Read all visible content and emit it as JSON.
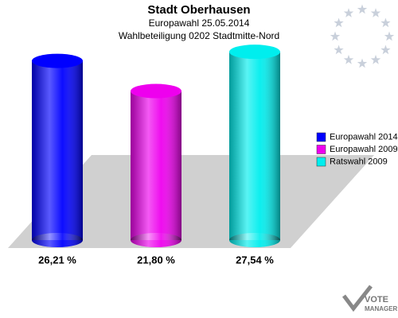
{
  "chart_data": {
    "type": "cylinder-bar",
    "title": "Stadt Oberhausen",
    "subtitle": [
      "Europawahl 25.05.2014",
      "Wahlbeteiligung 0202 Stadtmitte-Nord"
    ],
    "series": [
      {
        "name": "Europawahl 2014",
        "color": "#0000ff",
        "values": [
          26.21
        ],
        "value_labels": [
          "26,21 %"
        ]
      },
      {
        "name": "Europawahl 2009",
        "color": "#ee00ee",
        "values": [
          21.8
        ],
        "value_labels": [
          "21,80 %"
        ]
      },
      {
        "name": "Ratswahl 2009",
        "color": "#00eeee",
        "values": [
          27.54
        ],
        "value_labels": [
          "27,54 %"
        ]
      }
    ]
  },
  "branding": [
    "VOTE",
    "MANAGER"
  ]
}
